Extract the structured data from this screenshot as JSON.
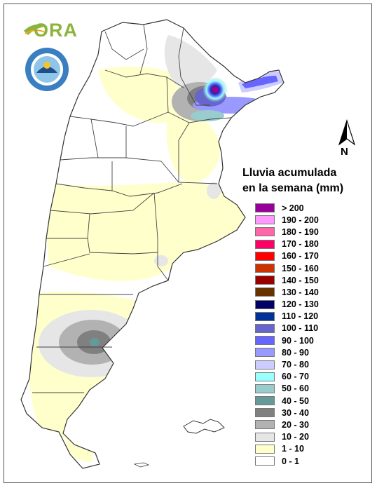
{
  "logos": {
    "ora_text": "ORA",
    "seal_icon": "smn-argentina-seal"
  },
  "north_arrow": {
    "label": "N",
    "icon": "north-arrow-icon"
  },
  "legend": {
    "title_line1": "Lluvia acumulada",
    "title_line2": "en la semana (mm)",
    "items": [
      {
        "label": "> 200",
        "color": "#990099"
      },
      {
        "label": "190 - 200",
        "color": "#ff99ff"
      },
      {
        "label": "180 - 190",
        "color": "#ff66aa"
      },
      {
        "label": "170 - 180",
        "color": "#ff0066"
      },
      {
        "label": "160 - 170",
        "color": "#ff0000"
      },
      {
        "label": "150 - 160",
        "color": "#cc3300"
      },
      {
        "label": "140 - 150",
        "color": "#990000"
      },
      {
        "label": "130 - 140",
        "color": "#663300"
      },
      {
        "label": "120 - 130",
        "color": "#000066"
      },
      {
        "label": "110 - 120",
        "color": "#003399"
      },
      {
        "label": "100 - 110",
        "color": "#6666cc"
      },
      {
        "label": "90 - 100",
        "color": "#6666ff"
      },
      {
        "label": "80 - 90",
        "color": "#9999ff"
      },
      {
        "label": "70 - 80",
        "color": "#ccccff"
      },
      {
        "label": "60 - 70",
        "color": "#99ffff"
      },
      {
        "label": "50 - 60",
        "color": "#99cccc"
      },
      {
        "label": "40 - 50",
        "color": "#669999"
      },
      {
        "label": "30 - 40",
        "color": "#808080"
      },
      {
        "label": "20 - 30",
        "color": "#b2b2b2"
      },
      {
        "label": "10 - 20",
        "color": "#e6e6e6"
      },
      {
        "label": "1 - 10",
        "color": "#ffffcc"
      },
      {
        "label": "0 - 1",
        "color": "#ffffff"
      }
    ]
  }
}
